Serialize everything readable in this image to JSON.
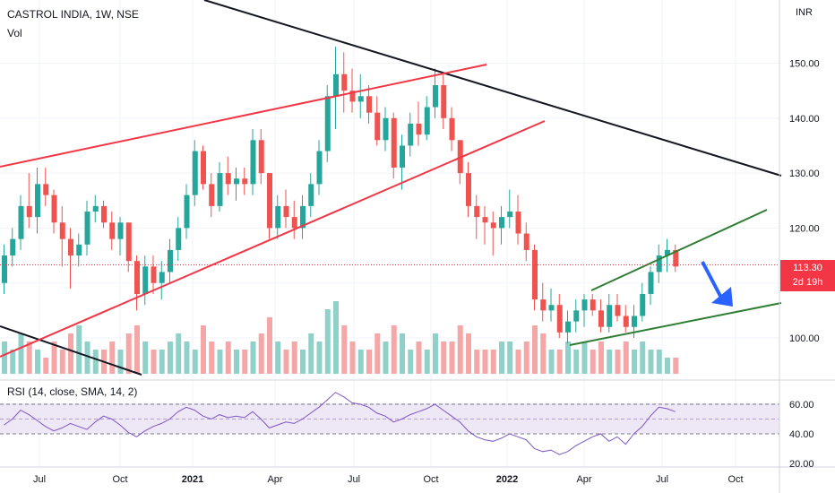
{
  "header": {
    "title": "CASTROL INDIA, 1W, NSE",
    "volume_label": "Vol",
    "rsi_label": "RSI (14, close, SMA, 14, 2)",
    "currency": "INR"
  },
  "price_badge": {
    "price": "113.30",
    "countdown": "2d 19h"
  },
  "colors": {
    "up": "#26a69a",
    "down": "#ef5350",
    "vol_up": "#8fd1c9",
    "vol_down": "#f5a6a6",
    "rsi": "#7e57c2",
    "rsi_band": "#ede7f6",
    "arrow": "#2962ff"
  },
  "chart_data": {
    "type": "candlestick",
    "x_ticks": [
      "Jul",
      "Oct",
      "2021",
      "Apr",
      "Jul",
      "Oct",
      "2022",
      "Apr",
      "Jul",
      "Oct"
    ],
    "y_ticks": [
      "100.00",
      "110.00",
      "120.00",
      "130.00",
      "140.00",
      "150.00"
    ],
    "rsi_ticks": [
      "60.00",
      "40.00",
      "20.00"
    ],
    "rsi_levels": [
      60,
      50,
      40
    ],
    "last_price": 113.3,
    "candles": [
      [
        110,
        117,
        108,
        115
      ],
      [
        115,
        120,
        113,
        118
      ],
      [
        118,
        126,
        116,
        124
      ],
      [
        124,
        130,
        120,
        122
      ],
      [
        122,
        131,
        119,
        128
      ],
      [
        128,
        131,
        124,
        126
      ],
      [
        126,
        127,
        119,
        121
      ],
      [
        121,
        124,
        113,
        118
      ],
      [
        118,
        120,
        109,
        115
      ],
      [
        115,
        119,
        113,
        117
      ],
      [
        117,
        125,
        115,
        123
      ],
      [
        123,
        126,
        121,
        124
      ],
      [
        124,
        125,
        120,
        121
      ],
      [
        121,
        123,
        116,
        118
      ],
      [
        118,
        122,
        115,
        121
      ],
      [
        121,
        121,
        112,
        114
      ],
      [
        114,
        115,
        105,
        108
      ],
      [
        108,
        115,
        106,
        113
      ],
      [
        113,
        115,
        108,
        110
      ],
      [
        110,
        114,
        107,
        112
      ],
      [
        112,
        118,
        110,
        116
      ],
      [
        116,
        122,
        114,
        120
      ],
      [
        120,
        128,
        118,
        126
      ],
      [
        126,
        136,
        124,
        134
      ],
      [
        134,
        135,
        127,
        128
      ],
      [
        128,
        130,
        122,
        124
      ],
      [
        124,
        132,
        123,
        130
      ],
      [
        130,
        133,
        126,
        128
      ],
      [
        128,
        131,
        125,
        129
      ],
      [
        129,
        131,
        126,
        128
      ],
      [
        128,
        138,
        126,
        136
      ],
      [
        136,
        138,
        128,
        130
      ],
      [
        130,
        130,
        118,
        120
      ],
      [
        120,
        126,
        118,
        124
      ],
      [
        124,
        127,
        120,
        122
      ],
      [
        122,
        125,
        118,
        120
      ],
      [
        120,
        126,
        118,
        124
      ],
      [
        124,
        130,
        122,
        128
      ],
      [
        128,
        136,
        126,
        134
      ],
      [
        134,
        146,
        132,
        144
      ],
      [
        144,
        153,
        138,
        148
      ],
      [
        148,
        152,
        141,
        145
      ],
      [
        145,
        149,
        141,
        143
      ],
      [
        143,
        148,
        140,
        144
      ],
      [
        144,
        146,
        139,
        141
      ],
      [
        141,
        144,
        135,
        136
      ],
      [
        136,
        142,
        134,
        140
      ],
      [
        140,
        141,
        129,
        131
      ],
      [
        131,
        137,
        127,
        135
      ],
      [
        135,
        141,
        133,
        139
      ],
      [
        139,
        143,
        135,
        137
      ],
      [
        137,
        144,
        136,
        142
      ],
      [
        142,
        149,
        140,
        146
      ],
      [
        146,
        148,
        138,
        140
      ],
      [
        140,
        142,
        134,
        136
      ],
      [
        136,
        136,
        128,
        130
      ],
      [
        130,
        132,
        122,
        124
      ],
      [
        124,
        126,
        118,
        122
      ],
      [
        122,
        124,
        117,
        121
      ],
      [
        121,
        123,
        115,
        120
      ],
      [
        120,
        124,
        117,
        122
      ],
      [
        122,
        127,
        120,
        123
      ],
      [
        123,
        126,
        117,
        119
      ],
      [
        119,
        121,
        114,
        116
      ],
      [
        116,
        117,
        105,
        107
      ],
      [
        107,
        110,
        103,
        105
      ],
      [
        105,
        109,
        103,
        106
      ],
      [
        106,
        108,
        100,
        101
      ],
      [
        101,
        105,
        99,
        103
      ],
      [
        103,
        107,
        101,
        105
      ],
      [
        105,
        108,
        102,
        107
      ],
      [
        107,
        108,
        104,
        105
      ],
      [
        105,
        107,
        101,
        102
      ],
      [
        102,
        108,
        101,
        106
      ],
      [
        106,
        108,
        103,
        104
      ],
      [
        104,
        106,
        101,
        102
      ],
      [
        102,
        106,
        100,
        104
      ],
      [
        104,
        110,
        103,
        108
      ],
      [
        108,
        113,
        106,
        112
      ],
      [
        112,
        117,
        110,
        115
      ],
      [
        115,
        118,
        112,
        116
      ],
      [
        116,
        117,
        112,
        113
      ]
    ],
    "volumes": [
      4,
      3,
      5,
      4,
      3,
      2,
      4,
      3,
      5,
      6,
      4,
      3,
      3,
      4,
      3,
      5,
      6,
      4,
      3,
      3,
      4,
      5,
      4,
      3,
      6,
      4,
      3,
      4,
      3,
      3,
      4,
      5,
      7,
      4,
      3,
      4,
      3,
      5,
      4,
      8,
      9,
      6,
      4,
      3,
      3,
      5,
      4,
      6,
      5,
      3,
      4,
      3,
      5,
      4,
      4,
      6,
      5,
      3,
      3,
      3,
      4,
      4,
      3,
      4,
      6,
      5,
      3,
      3,
      4,
      3,
      4,
      3,
      4,
      3,
      3,
      4,
      3,
      4,
      3,
      3,
      2,
      2
    ],
    "rsi": [
      46,
      50,
      56,
      53,
      49,
      45,
      42,
      44,
      47,
      45,
      43,
      48,
      52,
      50,
      46,
      41,
      38,
      42,
      45,
      47,
      50,
      55,
      58,
      56,
      52,
      50,
      53,
      51,
      52,
      51,
      55,
      50,
      44,
      46,
      48,
      47,
      50,
      54,
      58,
      63,
      68,
      65,
      61,
      60,
      58,
      54,
      52,
      48,
      50,
      53,
      55,
      57,
      60,
      56,
      52,
      48,
      42,
      38,
      36,
      35,
      37,
      40,
      38,
      36,
      30,
      28,
      29,
      26,
      28,
      32,
      35,
      38,
      40,
      35,
      38,
      33,
      40,
      45,
      52,
      58,
      57,
      55
    ]
  },
  "annotations": {
    "projection_arrow": "down"
  }
}
